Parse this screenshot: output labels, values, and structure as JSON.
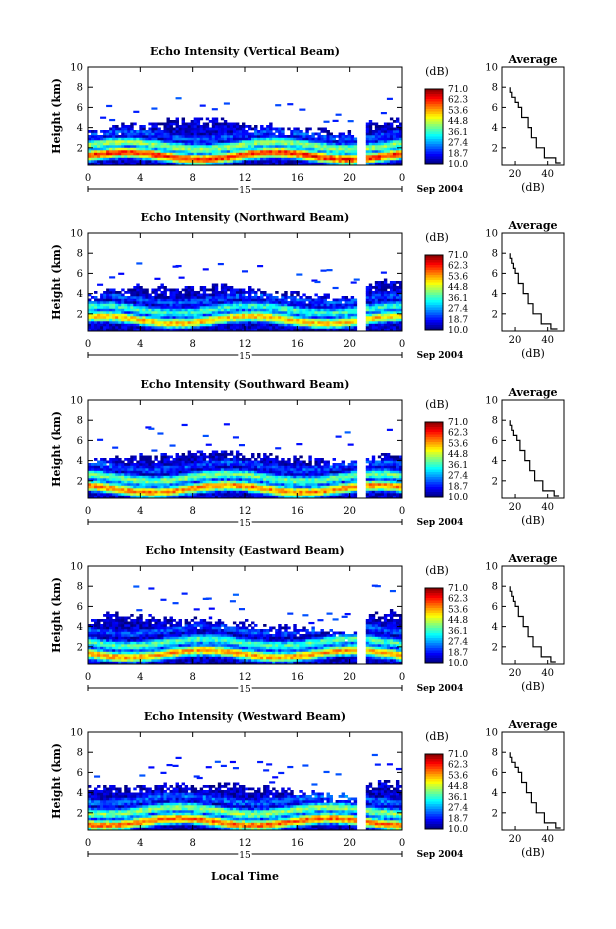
{
  "figure": {
    "y_axis_label": "Height (km)",
    "x_axis_label": "Local Time",
    "date_day": "15",
    "date_month": "Sep 2004",
    "cbar_unit": "(dB)",
    "avg_title": "Average",
    "avg_xlabel": "(dB)",
    "avg_xticks": [
      "20",
      "40"
    ]
  },
  "chart_data": [
    {
      "type": "heatmap",
      "title": "Echo Intensity (Vertical Beam)",
      "xlabel": "",
      "ylabel": "Height (km)",
      "xlim": [
        0,
        24
      ],
      "ylim": [
        0.3,
        10
      ],
      "x_ticks": [
        "0",
        "4",
        "8",
        "12",
        "16",
        "20",
        "0"
      ],
      "y_ticks": [
        "2",
        "4",
        "6",
        "8",
        "10"
      ],
      "colorbar": {
        "unit": "(dB)",
        "range": [
          10.0,
          71.0
        ],
        "ticks": [
          "71.0",
          "62.3",
          "53.6",
          "44.8",
          "36.1",
          "27.4",
          "18.7",
          "10.0"
        ]
      },
      "echo_top_km": {
        "x_hours": [
          0,
          2,
          4,
          6,
          8,
          10,
          12,
          14,
          16,
          18,
          20,
          20.8,
          21.4,
          24
        ],
        "y": [
          3.6,
          4.0,
          4.4,
          4.6,
          4.6,
          4.8,
          4.4,
          4.2,
          3.8,
          3.6,
          3.4,
          3.4,
          4.6,
          4.8
        ]
      },
      "bands": [
        {
          "height_km": 1.2,
          "db": 62
        },
        {
          "height_km": 2.2,
          "db": 42
        },
        {
          "height_km": 3.2,
          "db": 22
        }
      ],
      "average_profile": {
        "title": "Average",
        "xlabel": "(dB)",
        "x_ticks": [
          "20",
          "40"
        ],
        "xlim": [
          12,
          50
        ],
        "height_km": [
          0.5,
          1,
          2,
          3,
          4,
          5,
          6,
          6.5,
          7,
          7.5,
          8
        ],
        "db": [
          48,
          45,
          38,
          33,
          30,
          28,
          24,
          22,
          20,
          18,
          17
        ]
      }
    },
    {
      "type": "heatmap",
      "title": "Echo Intensity (Northward Beam)",
      "xlabel": "",
      "ylabel": "Height (km)",
      "xlim": [
        0,
        24
      ],
      "ylim": [
        0.3,
        10
      ],
      "x_ticks": [
        "0",
        "4",
        "8",
        "12",
        "16",
        "20",
        "0"
      ],
      "y_ticks": [
        "2",
        "4",
        "6",
        "8",
        "10"
      ],
      "colorbar": {
        "unit": "(dB)",
        "range": [
          10.0,
          71.0
        ],
        "ticks": [
          "71.0",
          "62.3",
          "53.6",
          "44.8",
          "36.1",
          "27.4",
          "18.7",
          "10.0"
        ]
      },
      "echo_top_km": {
        "x_hours": [
          0,
          2,
          4,
          6,
          8,
          10,
          12,
          14,
          16,
          18,
          20,
          20.8,
          21.4,
          24
        ],
        "y": [
          3.8,
          4.4,
          4.6,
          4.6,
          4.4,
          4.6,
          4.4,
          4.2,
          4.0,
          3.8,
          3.6,
          3.6,
          5.0,
          5.2
        ]
      },
      "bands": [
        {
          "height_km": 1.4,
          "db": 52
        },
        {
          "height_km": 2.4,
          "db": 36
        },
        {
          "height_km": 3.4,
          "db": 22
        }
      ],
      "average_profile": {
        "title": "Average",
        "xlabel": "(dB)",
        "x_ticks": [
          "20",
          "40"
        ],
        "xlim": [
          12,
          50
        ],
        "height_km": [
          0.5,
          1,
          2,
          3,
          4,
          5,
          6,
          6.5,
          7,
          7.5,
          8
        ],
        "db": [
          46,
          42,
          36,
          31,
          28,
          25,
          22,
          20,
          19,
          18,
          17
        ]
      }
    },
    {
      "type": "heatmap",
      "title": "Echo Intensity (Southward Beam)",
      "xlabel": "",
      "ylabel": "Height (km)",
      "xlim": [
        0,
        24
      ],
      "ylim": [
        0.3,
        10
      ],
      "x_ticks": [
        "0",
        "4",
        "8",
        "12",
        "16",
        "20",
        "0"
      ],
      "y_ticks": [
        "2",
        "4",
        "6",
        "8",
        "10"
      ],
      "colorbar": {
        "unit": "(dB)",
        "range": [
          10.0,
          71.0
        ],
        "ticks": [
          "71.0",
          "62.3",
          "53.6",
          "44.8",
          "36.1",
          "27.4",
          "18.7",
          "10.0"
        ]
      },
      "echo_top_km": {
        "x_hours": [
          0,
          2,
          4,
          6,
          8,
          10,
          12,
          14,
          16,
          18,
          20,
          20.8,
          21.4,
          24
        ],
        "y": [
          3.8,
          4.2,
          4.4,
          4.6,
          4.6,
          4.8,
          4.6,
          4.4,
          4.2,
          4.0,
          3.8,
          3.8,
          4.4,
          4.6
        ]
      },
      "bands": [
        {
          "height_km": 1.2,
          "db": 56
        },
        {
          "height_km": 2.3,
          "db": 40
        },
        {
          "height_km": 3.4,
          "db": 22
        }
      ],
      "average_profile": {
        "title": "Average",
        "xlabel": "(dB)",
        "x_ticks": [
          "20",
          "40"
        ],
        "xlim": [
          12,
          50
        ],
        "height_km": [
          0.5,
          1,
          2,
          3,
          4,
          5,
          6,
          6.5,
          7,
          7.5,
          8
        ],
        "db": [
          47,
          44,
          37,
          32,
          29,
          26,
          23,
          21,
          19,
          18,
          17
        ]
      }
    },
    {
      "type": "heatmap",
      "title": "Echo Intensity (Eastward Beam)",
      "xlabel": "",
      "ylabel": "Height (km)",
      "xlim": [
        0,
        24
      ],
      "ylim": [
        0.3,
        10
      ],
      "x_ticks": [
        "0",
        "4",
        "8",
        "12",
        "16",
        "20",
        "0"
      ],
      "y_ticks": [
        "2",
        "4",
        "6",
        "8",
        "10"
      ],
      "colorbar": {
        "unit": "(dB)",
        "range": [
          10.0,
          71.0
        ],
        "ticks": [
          "71.0",
          "62.3",
          "53.6",
          "44.8",
          "36.1",
          "27.4",
          "18.7",
          "10.0"
        ]
      },
      "echo_top_km": {
        "x_hours": [
          0,
          2,
          4,
          6,
          8,
          10,
          12,
          14,
          16,
          18,
          20,
          20.8,
          21.4,
          24
        ],
        "y": [
          4.6,
          5.2,
          5.0,
          4.8,
          4.6,
          4.6,
          4.4,
          4.0,
          3.8,
          3.6,
          3.4,
          3.4,
          5.2,
          5.4
        ]
      },
      "bands": [
        {
          "height_km": 1.3,
          "db": 54
        },
        {
          "height_km": 2.4,
          "db": 38
        },
        {
          "height_km": 3.6,
          "db": 22
        }
      ],
      "average_profile": {
        "title": "Average",
        "xlabel": "(dB)",
        "x_ticks": [
          "20",
          "40"
        ],
        "xlim": [
          12,
          50
        ],
        "height_km": [
          0.5,
          1,
          2,
          3,
          4,
          5,
          6,
          6.5,
          7,
          7.5,
          8
        ],
        "db": [
          45,
          42,
          36,
          31,
          28,
          25,
          22,
          20,
          19,
          18,
          17
        ]
      }
    },
    {
      "type": "heatmap",
      "title": "Echo Intensity (Westward Beam)",
      "xlabel": "",
      "ylabel": "Height (km)",
      "xlim": [
        0,
        24
      ],
      "ylim": [
        0.3,
        10
      ],
      "x_ticks": [
        "0",
        "4",
        "8",
        "12",
        "16",
        "20",
        "0"
      ],
      "y_ticks": [
        "2",
        "4",
        "6",
        "8",
        "10"
      ],
      "colorbar": {
        "unit": "(dB)",
        "range": [
          10.0,
          71.0
        ],
        "ticks": [
          "71.0",
          "62.3",
          "53.6",
          "44.8",
          "36.1",
          "27.4",
          "18.7",
          "10.0"
        ]
      },
      "echo_top_km": {
        "x_hours": [
          0,
          2,
          4,
          6,
          8,
          10,
          12,
          14,
          16,
          18,
          20,
          20.8,
          21.4,
          24
        ],
        "y": [
          4.4,
          4.8,
          4.6,
          4.6,
          4.6,
          4.8,
          4.6,
          4.4,
          4.0,
          3.8,
          3.6,
          3.6,
          4.8,
          5.0
        ]
      },
      "bands": [
        {
          "height_km": 1.1,
          "db": 58
        },
        {
          "height_km": 2.2,
          "db": 42
        },
        {
          "height_km": 3.3,
          "db": 24
        }
      ],
      "average_profile": {
        "title": "Average",
        "xlabel": "(dB)",
        "x_ticks": [
          "20",
          "40"
        ],
        "xlim": [
          12,
          50
        ],
        "height_km": [
          0.5,
          1,
          2,
          3,
          4,
          5,
          6,
          6.5,
          7,
          7.5,
          8
        ],
        "db": [
          48,
          45,
          38,
          33,
          30,
          27,
          24,
          22,
          20,
          18,
          17
        ]
      }
    }
  ]
}
